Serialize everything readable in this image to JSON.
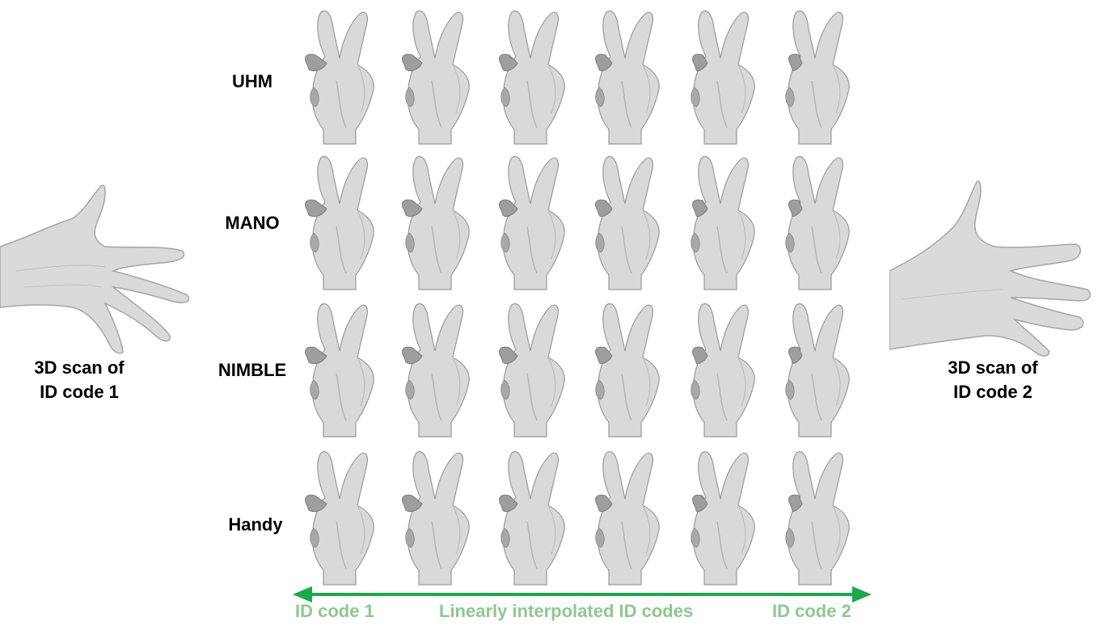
{
  "rows": [
    {
      "label": "UHM"
    },
    {
      "label": "MANO"
    },
    {
      "label": "NIMBLE"
    },
    {
      "label": "Handy"
    }
  ],
  "left_scan": {
    "line1": "3D scan of",
    "line2": "ID code 1"
  },
  "right_scan": {
    "line1": "3D scan of",
    "line2": "ID code 2"
  },
  "bottom": {
    "left": "ID code 1",
    "middle": "Linearly interpolated ID codes",
    "right": "ID code 2"
  },
  "colors": {
    "arrow": "#1aaa4a",
    "bottom_text": "#8cc98c",
    "hand_fill": "#d9d9d9",
    "hand_stroke": "#9a9a9a"
  },
  "icons": {
    "hand": "peace-sign-hand-mesh",
    "scan": "open-hand-scan"
  }
}
